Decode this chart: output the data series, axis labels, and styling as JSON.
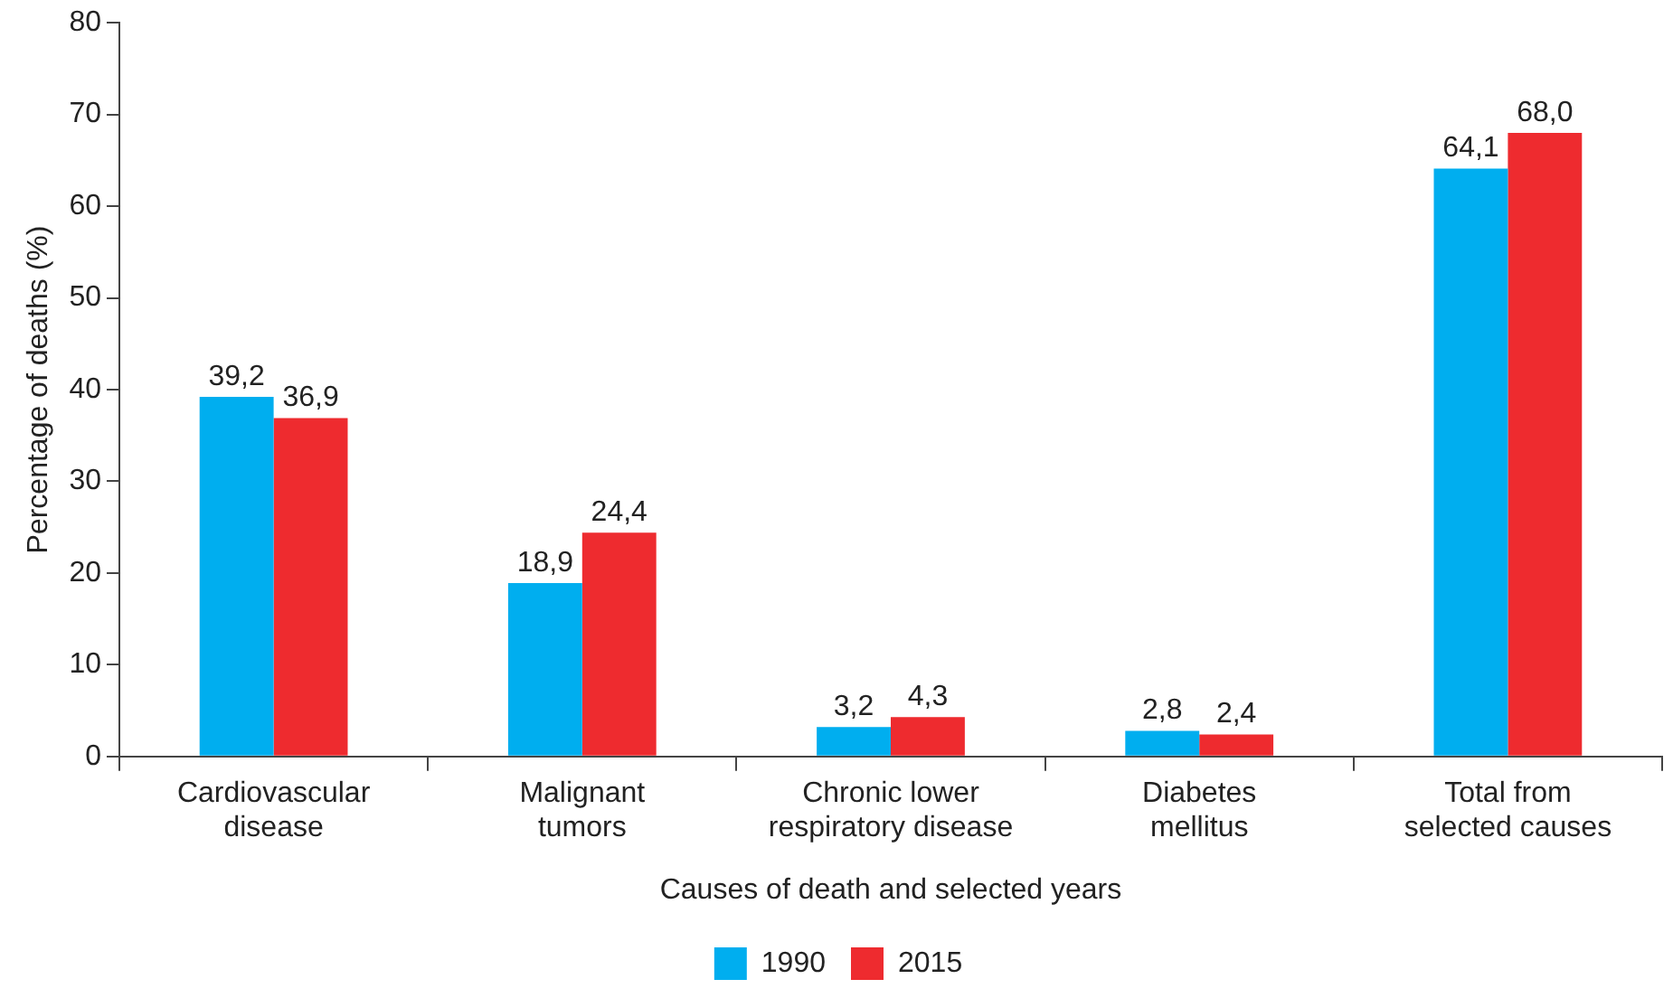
{
  "chart_data": {
    "type": "bar",
    "xlabel": "Causes of death and selected years",
    "ylabel": "Percentage of deaths (%)",
    "categories": [
      "Cardiovascular\ndisease",
      "Malignant\ntumors",
      "Chronic lower\nrespiratory disease",
      "Diabetes\nmellitus",
      "Total from\nselected causes"
    ],
    "series": [
      {
        "name": "1990",
        "color": "#00aeef",
        "values": [
          39.2,
          18.9,
          3.2,
          2.8,
          64.1
        ],
        "value_labels": [
          "39,2",
          "18,9",
          "3,2",
          "2,8",
          "64,1"
        ]
      },
      {
        "name": "2015",
        "color": "#ee2b2f",
        "values": [
          36.9,
          24.4,
          4.3,
          2.4,
          68.0
        ],
        "value_labels": [
          "36,9",
          "24,4",
          "4,3",
          "2,4",
          "68,0"
        ]
      }
    ],
    "ylim": [
      0,
      80
    ],
    "yticks": [
      0,
      10,
      20,
      30,
      40,
      50,
      60,
      70,
      80
    ],
    "grid": false,
    "legend": "bottom"
  }
}
